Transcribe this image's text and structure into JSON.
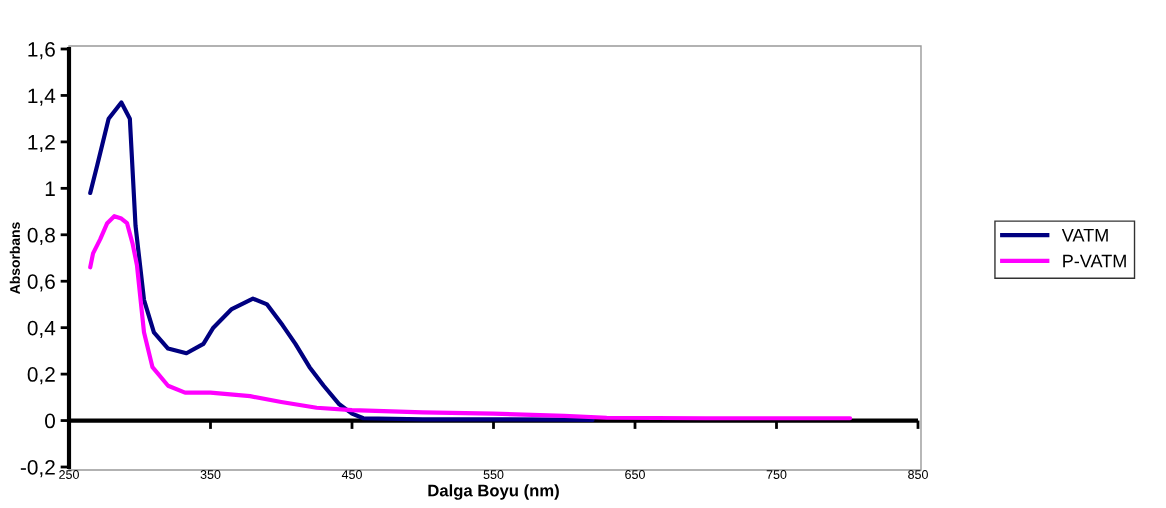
{
  "chart_data": {
    "type": "line",
    "xlabel": "Dalga Boyu (nm)",
    "ylabel": "Absorbans",
    "xlim": [
      250,
      850
    ],
    "xticks": [
      250,
      350,
      450,
      550,
      650,
      750,
      850
    ],
    "ylim": [
      -0.2,
      1.6
    ],
    "yticks": [
      {
        "value": -0.2,
        "label": "-0,2"
      },
      0,
      {
        "value": 0.2,
        "label": "0,2"
      },
      {
        "value": 0.4,
        "label": "0,4"
      },
      {
        "value": 0.6,
        "label": "0,6"
      },
      {
        "value": 0.8,
        "label": "0,8"
      },
      1,
      {
        "value": 1.2,
        "label": "1,2"
      },
      {
        "value": 1.4,
        "label": "1,4"
      },
      {
        "value": 1.6,
        "label": "1,6"
      }
    ],
    "ref_lines": [
      {
        "axis": "y",
        "value": 0,
        "color": "#000000",
        "line_style": "solid"
      }
    ],
    "grid": false,
    "legend": "right",
    "marker": "none",
    "line_style": "solid",
    "series": [
      {
        "name": "VATM",
        "color": "#000080",
        "x": [
          265,
          270,
          278,
          287,
          293,
          297,
          303,
          310,
          320,
          333,
          345,
          352,
          365,
          380,
          390,
          401,
          410,
          420,
          430,
          441,
          450,
          458,
          500,
          550,
          600,
          620
        ],
        "values": [
          0.98,
          1.1,
          1.3,
          1.37,
          1.3,
          0.84,
          0.52,
          0.38,
          0.31,
          0.29,
          0.33,
          0.4,
          0.48,
          0.525,
          0.5,
          0.41,
          0.33,
          0.23,
          0.15,
          0.07,
          0.03,
          0.01,
          0.005,
          0.005,
          0.004,
          0.003
        ]
      },
      {
        "name": "P-VATM",
        "color": "#ff00ff",
        "x": [
          265,
          267,
          272,
          277,
          282,
          287,
          291,
          295,
          298,
          303,
          309,
          320,
          332,
          350,
          378,
          400,
          425,
          450,
          500,
          550,
          600,
          630,
          700,
          802
        ],
        "values": [
          0.66,
          0.72,
          0.78,
          0.85,
          0.88,
          0.87,
          0.85,
          0.76,
          0.67,
          0.38,
          0.23,
          0.15,
          0.12,
          0.12,
          0.105,
          0.08,
          0.055,
          0.045,
          0.035,
          0.03,
          0.02,
          0.012,
          0.01,
          0.01
        ]
      }
    ]
  }
}
